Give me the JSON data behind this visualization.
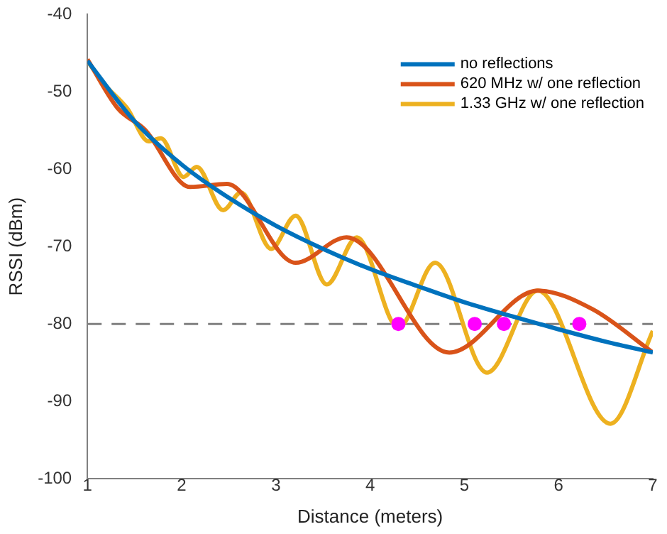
{
  "chart_data": {
    "type": "line",
    "xlabel": "Distance (meters)",
    "ylabel": "RSSI (dBm)",
    "xlim": [
      1,
      7
    ],
    "xticks": [
      1,
      2,
      3,
      4,
      5,
      6,
      7
    ],
    "ylim": [
      -100,
      -40
    ],
    "yticks": [
      -100,
      -90,
      -80,
      -70,
      -60,
      -50,
      -40
    ],
    "grid": false,
    "legend": "top right",
    "marker": "none",
    "series": [
      {
        "name": "no reflections",
        "color": "#0072bd",
        "x": [
          1,
          1.5,
          2,
          2.5,
          3,
          3.5,
          4,
          4.5,
          5,
          5.5,
          6,
          6.5,
          7
        ],
        "values": [
          -46,
          -53.8,
          -59.4,
          -63.7,
          -67.3,
          -70.3,
          -72.9,
          -75.1,
          -77.2,
          -79,
          -80.7,
          -82.3,
          -83.7
        ]
      },
      {
        "name": "620 MHz w/ one reflection",
        "color": "#d95319",
        "x": [
          1,
          1.32,
          1.61,
          2.09,
          2.48,
          3.21,
          3.75,
          4.84,
          5.78,
          6.36,
          7
        ],
        "values": [
          -45.8,
          -52.1,
          -54.9,
          -62.3,
          -61.9,
          -72.1,
          -68.8,
          -83.7,
          -75.7,
          -78.1,
          -83.7
        ]
      },
      {
        "name": "1.33 GHz w/ one reflection",
        "color": "#edb120",
        "x": [
          1,
          1.17,
          1.42,
          1.65,
          1.78,
          2.02,
          2.16,
          2.44,
          2.63,
          2.95,
          3.21,
          3.54,
          3.86,
          4.3,
          4.69,
          5.24,
          5.78,
          6.55,
          7
        ],
        "values": [
          -46,
          -48.9,
          -52.1,
          -56.4,
          -56,
          -61,
          -59.7,
          -65.3,
          -63,
          -70.3,
          -66,
          -74.9,
          -68.8,
          -80.5,
          -72.1,
          -86.3,
          -75.7,
          -92.9,
          -80.9
        ]
      },
      {
        "type": "scatter",
        "marker": "circle",
        "color": "#ff00ff",
        "x": [
          4.3,
          5.11,
          5.42,
          6.22
        ],
        "values": [
          -80,
          -80,
          -80,
          -80
        ]
      }
    ],
    "ref_lines": [
      {
        "axis": "y",
        "value": -80,
        "color": "#808080",
        "line_style": "dashed"
      }
    ]
  }
}
